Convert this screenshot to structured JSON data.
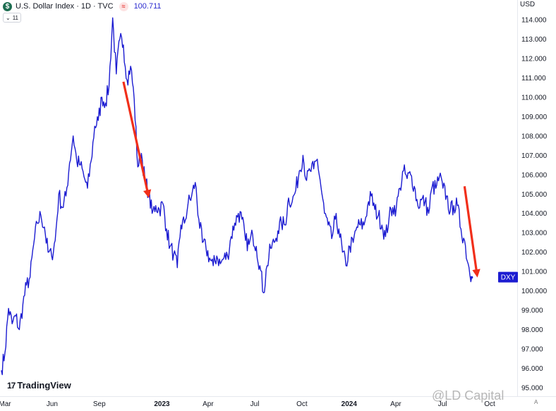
{
  "header": {
    "logo_glyph": "$",
    "title": "U.S. Dollar Index · 1D · TVC",
    "exchange_glyph": "≈",
    "last_price": "100.711"
  },
  "collapse_pill": {
    "chevron": "⌄",
    "count": "11"
  },
  "currency": "USD",
  "brand": {
    "mark": "17",
    "name": "TradingView"
  },
  "watermark": "@LD Capital",
  "auto_label": "A",
  "colors": {
    "line": "#1c1cd1",
    "arrow": "#f12f1a",
    "axis_text": "#131722",
    "tag_bg": "#1c1cd1"
  },
  "chart_data": {
    "type": "line",
    "title": "U.S. Dollar Index · 1D · TVC",
    "xlabel": "",
    "ylabel": "",
    "currency": "USD",
    "ylim": [
      95,
      115
    ],
    "y_ticks": [
      "114.000",
      "113.000",
      "112.000",
      "111.000",
      "110.000",
      "109.000",
      "108.000",
      "107.000",
      "106.000",
      "105.000",
      "104.000",
      "103.000",
      "102.000",
      "101.000",
      "100.000",
      "99.000",
      "98.000",
      "97.000",
      "96.000",
      "95.000"
    ],
    "x_tick_labels": [
      {
        "label": "Mar",
        "date": "2022-03-01",
        "bold": false
      },
      {
        "label": "Jun",
        "date": "2022-06-01",
        "bold": false
      },
      {
        "label": "Sep",
        "date": "2022-09-01",
        "bold": false
      },
      {
        "label": "2023",
        "date": "2023-01-01",
        "bold": true
      },
      {
        "label": "Apr",
        "date": "2023-04-01",
        "bold": false
      },
      {
        "label": "Jul",
        "date": "2023-07-01",
        "bold": false
      },
      {
        "label": "Oct",
        "date": "2023-10-01",
        "bold": false
      },
      {
        "label": "2024",
        "date": "2024-01-01",
        "bold": true
      },
      {
        "label": "Apr",
        "date": "2024-04-01",
        "bold": false
      },
      {
        "label": "Jul",
        "date": "2024-07-01",
        "bold": false
      },
      {
        "label": "Oct",
        "date": "2024-10-01",
        "bold": false
      }
    ],
    "last_value_tag": "DXY",
    "last_value": 100.71,
    "grid": false,
    "series": [
      {
        "values": [
          [
            "2022-02-22",
            95.9
          ],
          [
            "2022-03-01",
            96.8
          ],
          [
            "2022-03-08",
            99.1
          ],
          [
            "2022-03-15",
            98.3
          ],
          [
            "2022-03-22",
            98.7
          ],
          [
            "2022-03-29",
            98.0
          ],
          [
            "2022-04-05",
            99.3
          ],
          [
            "2022-04-12",
            100.3
          ],
          [
            "2022-04-19",
            100.7
          ],
          [
            "2022-04-26",
            102.4
          ],
          [
            "2022-05-03",
            103.5
          ],
          [
            "2022-05-10",
            103.9
          ],
          [
            "2022-05-17",
            103.3
          ],
          [
            "2022-05-24",
            102.0
          ],
          [
            "2022-05-31",
            101.8
          ],
          [
            "2022-06-07",
            102.6
          ],
          [
            "2022-06-14",
            105.0
          ],
          [
            "2022-06-21",
            104.3
          ],
          [
            "2022-06-28",
            104.9
          ],
          [
            "2022-07-05",
            106.6
          ],
          [
            "2022-07-12",
            108.0
          ],
          [
            "2022-07-19",
            106.7
          ],
          [
            "2022-07-26",
            106.5
          ],
          [
            "2022-08-02",
            105.9
          ],
          [
            "2022-08-09",
            105.3
          ],
          [
            "2022-08-16",
            106.7
          ],
          [
            "2022-08-23",
            108.5
          ],
          [
            "2022-08-30",
            108.8
          ],
          [
            "2022-09-06",
            110.0
          ],
          [
            "2022-09-13",
            109.7
          ],
          [
            "2022-09-20",
            110.6
          ],
          [
            "2022-09-27",
            114.1
          ],
          [
            "2022-10-04",
            111.2
          ],
          [
            "2022-10-11",
            113.0
          ],
          [
            "2022-10-18",
            112.7
          ],
          [
            "2022-10-25",
            110.9
          ],
          [
            "2022-11-01",
            111.6
          ],
          [
            "2022-11-08",
            109.9
          ],
          [
            "2022-11-15",
            106.4
          ],
          [
            "2022-11-22",
            107.1
          ],
          [
            "2022-11-29",
            105.7
          ],
          [
            "2022-12-06",
            105.1
          ],
          [
            "2022-12-13",
            104.0
          ],
          [
            "2022-12-20",
            104.4
          ],
          [
            "2022-12-27",
            104.2
          ],
          [
            "2023-01-03",
            104.5
          ],
          [
            "2023-01-10",
            103.2
          ],
          [
            "2023-01-17",
            102.3
          ],
          [
            "2023-01-24",
            101.9
          ],
          [
            "2023-01-31",
            101.2
          ],
          [
            "2023-02-07",
            103.4
          ],
          [
            "2023-02-14",
            103.5
          ],
          [
            "2023-02-21",
            104.5
          ],
          [
            "2023-02-28",
            104.9
          ],
          [
            "2023-03-07",
            105.6
          ],
          [
            "2023-03-14",
            103.7
          ],
          [
            "2023-03-21",
            102.5
          ],
          [
            "2023-03-28",
            102.2
          ],
          [
            "2023-04-04",
            101.7
          ],
          [
            "2023-04-11",
            101.3
          ],
          [
            "2023-04-18",
            101.8
          ],
          [
            "2023-04-25",
            101.4
          ],
          [
            "2023-05-02",
            101.7
          ],
          [
            "2023-05-09",
            101.8
          ],
          [
            "2023-05-16",
            102.8
          ],
          [
            "2023-05-23",
            103.5
          ],
          [
            "2023-05-30",
            104.0
          ],
          [
            "2023-06-06",
            103.7
          ],
          [
            "2023-06-13",
            102.6
          ],
          [
            "2023-06-20",
            102.4
          ],
          [
            "2023-06-27",
            102.9
          ],
          [
            "2023-07-04",
            102.3
          ],
          [
            "2023-07-11",
            101.3
          ],
          [
            "2023-07-18",
            99.9
          ],
          [
            "2023-07-25",
            101.3
          ],
          [
            "2023-08-01",
            102.2
          ],
          [
            "2023-08-08",
            102.5
          ],
          [
            "2023-08-15",
            103.1
          ],
          [
            "2023-08-22",
            103.5
          ],
          [
            "2023-08-29",
            103.4
          ],
          [
            "2023-09-05",
            104.8
          ],
          [
            "2023-09-12",
            104.6
          ],
          [
            "2023-09-19",
            105.2
          ],
          [
            "2023-09-26",
            106.2
          ],
          [
            "2023-10-03",
            107.0
          ],
          [
            "2023-10-10",
            105.7
          ],
          [
            "2023-10-17",
            106.2
          ],
          [
            "2023-10-24",
            106.3
          ],
          [
            "2023-10-31",
            106.8
          ],
          [
            "2023-11-07",
            105.4
          ],
          [
            "2023-11-14",
            104.0
          ],
          [
            "2023-11-21",
            103.4
          ],
          [
            "2023-11-28",
            102.7
          ],
          [
            "2023-12-05",
            103.7
          ],
          [
            "2023-12-12",
            103.2
          ],
          [
            "2023-12-19",
            102.0
          ],
          [
            "2023-12-26",
            101.3
          ],
          [
            "2024-01-02",
            102.3
          ],
          [
            "2024-01-09",
            102.5
          ],
          [
            "2024-01-16",
            103.3
          ],
          [
            "2024-01-23",
            103.4
          ],
          [
            "2024-01-30",
            103.4
          ],
          [
            "2024-02-06",
            104.4
          ],
          [
            "2024-02-13",
            104.9
          ],
          [
            "2024-02-20",
            104.2
          ],
          [
            "2024-02-27",
            103.9
          ],
          [
            "2024-03-05",
            103.4
          ],
          [
            "2024-03-12",
            102.8
          ],
          [
            "2024-03-19",
            103.8
          ],
          [
            "2024-03-26",
            104.3
          ],
          [
            "2024-04-02",
            104.3
          ],
          [
            "2024-04-09",
            105.3
          ],
          [
            "2024-04-16",
            106.2
          ],
          [
            "2024-04-23",
            105.8
          ],
          [
            "2024-04-30",
            106.0
          ],
          [
            "2024-05-07",
            105.4
          ],
          [
            "2024-05-14",
            104.4
          ],
          [
            "2024-05-21",
            104.7
          ],
          [
            "2024-05-28",
            104.6
          ],
          [
            "2024-06-04",
            104.0
          ],
          [
            "2024-06-11",
            105.4
          ],
          [
            "2024-06-18",
            105.3
          ],
          [
            "2024-06-25",
            105.9
          ],
          [
            "2024-07-02",
            105.3
          ],
          [
            "2024-07-09",
            104.9
          ],
          [
            "2024-07-16",
            104.1
          ],
          [
            "2024-07-23",
            104.4
          ],
          [
            "2024-07-30",
            104.4
          ],
          [
            "2024-08-06",
            103.2
          ],
          [
            "2024-08-13",
            102.6
          ],
          [
            "2024-08-20",
            101.4
          ],
          [
            "2024-08-27",
            100.7
          ]
        ]
      }
    ],
    "annotations": [
      {
        "type": "arrow",
        "from": [
          "2022-10-18",
          110.8
        ],
        "to": [
          "2022-12-05",
          105.0
        ]
      },
      {
        "type": "arrow",
        "from": [
          "2024-08-13",
          105.4
        ],
        "to": [
          "2024-09-06",
          100.9
        ]
      }
    ]
  }
}
